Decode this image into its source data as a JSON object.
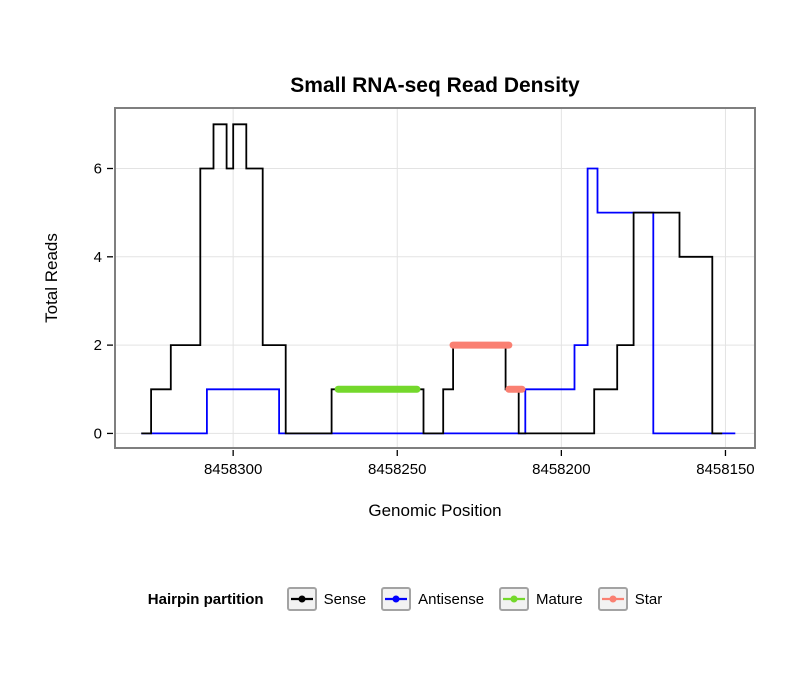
{
  "chart_data": {
    "type": "line",
    "title": "Small RNA-seq Read Density",
    "xlabel": "Genomic Position",
    "ylabel": "Total Reads",
    "x_reversed": true,
    "x_domain": [
      8458336,
      8458141
    ],
    "y_domain": [
      -0.33,
      7.37
    ],
    "x_ticks": [
      8458300,
      8458250,
      8458200,
      8458150
    ],
    "y_ticks": [
      0,
      2,
      4,
      6
    ],
    "grid": "major",
    "series": [
      {
        "name": "Antisense",
        "color": "#0000FF",
        "width": 1.8,
        "points": [
          [
            8458328,
            0
          ],
          [
            8458308,
            0
          ],
          [
            8458308,
            1
          ],
          [
            8458286,
            1
          ],
          [
            8458286,
            0
          ],
          [
            8458211,
            0
          ],
          [
            8458211,
            1
          ],
          [
            8458196,
            1
          ],
          [
            8458196,
            2
          ],
          [
            8458192,
            2
          ],
          [
            8458192,
            6
          ],
          [
            8458189,
            6
          ],
          [
            8458189,
            5
          ],
          [
            8458172,
            5
          ],
          [
            8458172,
            0
          ],
          [
            8458147,
            0
          ]
        ]
      },
      {
        "name": "Sense",
        "color": "#000000",
        "width": 1.8,
        "points": [
          [
            8458328,
            0
          ],
          [
            8458325,
            0
          ],
          [
            8458325,
            1
          ],
          [
            8458319,
            1
          ],
          [
            8458319,
            2
          ],
          [
            8458310,
            2
          ],
          [
            8458310,
            6
          ],
          [
            8458306,
            6
          ],
          [
            8458306,
            7
          ],
          [
            8458302,
            7
          ],
          [
            8458302,
            6
          ],
          [
            8458300,
            6
          ],
          [
            8458300,
            7
          ],
          [
            8458296,
            7
          ],
          [
            8458296,
            6
          ],
          [
            8458291,
            6
          ],
          [
            8458291,
            2
          ],
          [
            8458284,
            2
          ],
          [
            8458284,
            0
          ],
          [
            8458270,
            0
          ],
          [
            8458270,
            1
          ],
          [
            8458242,
            1
          ],
          [
            8458242,
            0
          ],
          [
            8458236,
            0
          ],
          [
            8458236,
            1
          ],
          [
            8458233,
            1
          ],
          [
            8458233,
            2
          ],
          [
            8458217,
            2
          ],
          [
            8458217,
            1
          ],
          [
            8458213,
            1
          ],
          [
            8458213,
            0
          ],
          [
            8458190,
            0
          ],
          [
            8458190,
            1
          ],
          [
            8458183,
            1
          ],
          [
            8458183,
            2
          ],
          [
            8458178,
            2
          ],
          [
            8458178,
            5
          ],
          [
            8458164,
            5
          ],
          [
            8458164,
            4
          ],
          [
            8458154,
            4
          ],
          [
            8458154,
            0
          ],
          [
            8458151,
            0
          ]
        ]
      },
      {
        "name": "Mature",
        "color": "#74D82C",
        "width": 7,
        "segments": [
          {
            "y": 1,
            "from": 8458268,
            "to": 8458244
          }
        ]
      },
      {
        "name": "Star",
        "color": "#FA8072",
        "width": 7,
        "segments": [
          {
            "y": 2,
            "from": 8458233,
            "to": 8458216
          },
          {
            "y": 1,
            "from": 8458216,
            "to": 8458212
          }
        ]
      }
    ]
  },
  "legend": {
    "title": "Hairpin partition",
    "entries": [
      {
        "label": "Sense",
        "color": "#000000"
      },
      {
        "label": "Antisense",
        "color": "#0000FF"
      },
      {
        "label": "Mature",
        "color": "#74D82C"
      },
      {
        "label": "Star",
        "color": "#FA8072"
      }
    ]
  }
}
